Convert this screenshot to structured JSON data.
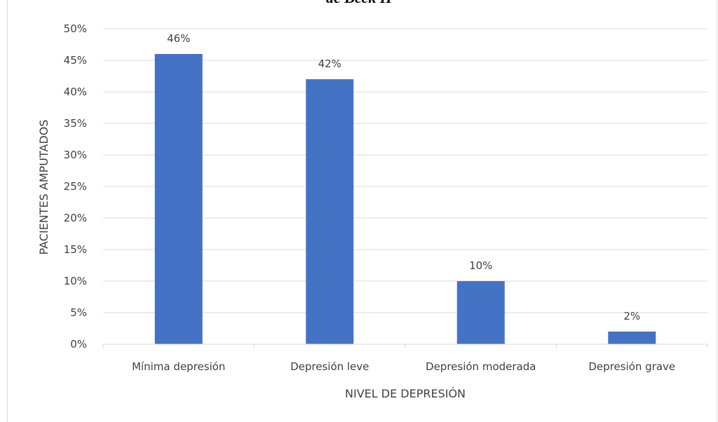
{
  "caption_fragment": "de Beck II",
  "chart_data": {
    "type": "bar",
    "categories": [
      "Mínima depresión",
      "Depresión leve",
      "Depresión moderada",
      "Depresión grave"
    ],
    "values": [
      46,
      42,
      10,
      2
    ],
    "data_labels": [
      "46%",
      "42%",
      "10%",
      "2%"
    ],
    "xlabel": "NIVEL DE DEPRESIÓN",
    "ylabel": "PACIENTES AMPUTADOS",
    "ylim": [
      0,
      50
    ],
    "yticks": [
      "0%",
      "5%",
      "10%",
      "15%",
      "20%",
      "25%",
      "30%",
      "35%",
      "40%",
      "45%",
      "50%"
    ],
    "grid": true,
    "bar_color": "#4472c4",
    "gridline_color": "#d9d9d9"
  }
}
